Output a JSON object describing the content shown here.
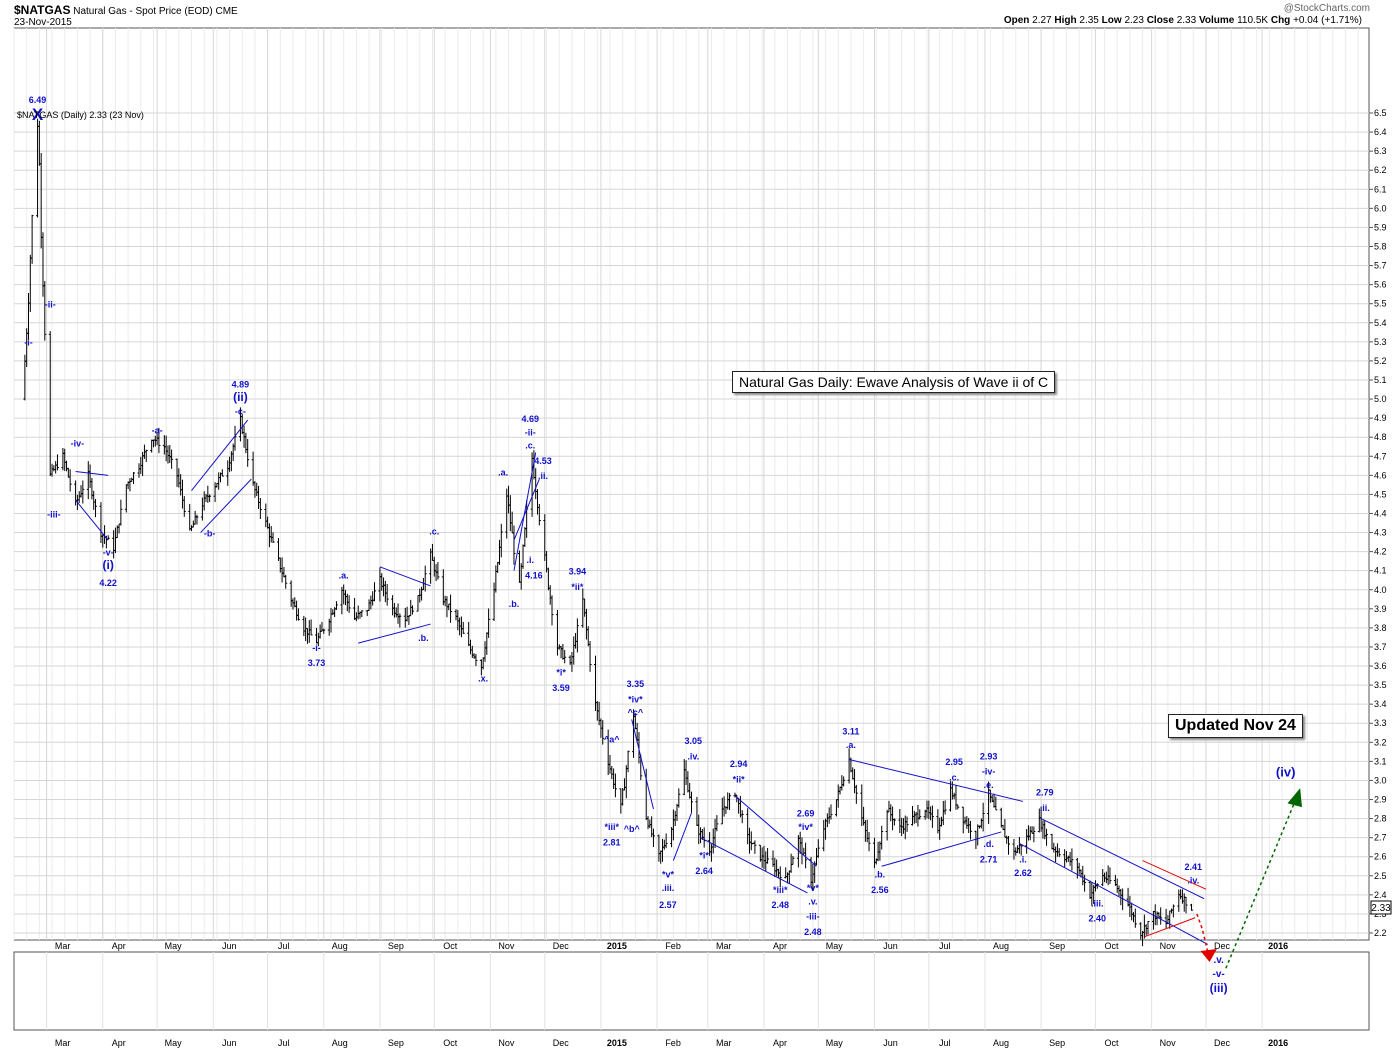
{
  "header": {
    "symbol": "$NATGAS",
    "name": "Natural Gas - Spot Price (EOD)",
    "exchange": "CME",
    "date": "23-Nov-2015",
    "watermark": "@StockCharts.com",
    "legend": "$NATGAS (Daily) 2.33 (23 Nov)",
    "ohlc": [
      {
        "label": "Open",
        "value": "2.27"
      },
      {
        "label": "High",
        "value": "2.35"
      },
      {
        "label": "Low",
        "value": "2.23"
      },
      {
        "label": "Close",
        "value": "2.33"
      },
      {
        "label": "Volume",
        "value": "110.5K"
      },
      {
        "label": "Chg",
        "value": "+0.04 (+1.71%)"
      }
    ]
  },
  "boxes": {
    "title": "Natural Gas Daily: Ewave Analysis of Wave ii of C",
    "updated": "Updated Nov 24"
  },
  "colors": {
    "wave": "#1010cc",
    "bars": "#000000",
    "red": "#e00000",
    "green": "#006600",
    "grid": "#d6d6d6"
  },
  "chart_data": {
    "type": "bar",
    "style": "ohlc",
    "ylim": [
      2.1,
      6.6
    ],
    "yticks": [
      2.2,
      2.3,
      2.4,
      2.5,
      2.6,
      2.7,
      2.8,
      2.9,
      3.0,
      3.1,
      3.2,
      3.3,
      3.4,
      3.5,
      3.6,
      3.7,
      3.8,
      3.9,
      4.0,
      4.1,
      4.2,
      4.3,
      4.4,
      4.5,
      4.6,
      4.7,
      4.8,
      4.9,
      5.0,
      5.1,
      5.2,
      5.3,
      5.4,
      5.5,
      5.6,
      5.7,
      5.8,
      5.9,
      6.0,
      6.1,
      6.2,
      6.3,
      6.4,
      6.5
    ],
    "last_price": "2.33",
    "x_tick_labels": [
      "Mar",
      "Apr",
      "May",
      "Jun",
      "Jul",
      "Aug",
      "Sep",
      "Oct",
      "Nov",
      "Dec",
      "2015",
      "Feb",
      "Mar",
      "Apr",
      "May",
      "Jun",
      "Jul",
      "Aug",
      "Sep",
      "Oct",
      "Nov",
      "Dec",
      "2016"
    ],
    "series": [
      {
        "points": [
          [
            "2014-02-17",
            5.2
          ],
          [
            "2014-02-24",
            6.49
          ],
          [
            "2014-03-03",
            4.6
          ],
          [
            "2014-03-10",
            4.7
          ],
          [
            "2014-03-17",
            4.45
          ],
          [
            "2014-03-24",
            4.6
          ],
          [
            "2014-03-31",
            4.3
          ],
          [
            "2014-04-07",
            4.22
          ],
          [
            "2014-04-14",
            4.55
          ],
          [
            "2014-04-21",
            4.65
          ],
          [
            "2014-04-28",
            4.8
          ],
          [
            "2014-05-05",
            4.75
          ],
          [
            "2014-05-12",
            4.6
          ],
          [
            "2014-05-19",
            4.3
          ],
          [
            "2014-05-26",
            4.45
          ],
          [
            "2014-06-02",
            4.55
          ],
          [
            "2014-06-09",
            4.65
          ],
          [
            "2014-06-16",
            4.89
          ],
          [
            "2014-06-23",
            4.55
          ],
          [
            "2014-06-30",
            4.35
          ],
          [
            "2014-07-07",
            4.15
          ],
          [
            "2014-07-14",
            3.95
          ],
          [
            "2014-07-21",
            3.8
          ],
          [
            "2014-07-28",
            3.73
          ],
          [
            "2014-08-04",
            3.85
          ],
          [
            "2014-08-11",
            4.0
          ],
          [
            "2014-08-18",
            3.85
          ],
          [
            "2014-08-25",
            3.9
          ],
          [
            "2014-09-01",
            4.05
          ],
          [
            "2014-09-08",
            3.9
          ],
          [
            "2014-09-15",
            3.85
          ],
          [
            "2014-09-22",
            3.95
          ],
          [
            "2014-09-29",
            4.18
          ],
          [
            "2014-10-06",
            3.95
          ],
          [
            "2014-10-13",
            3.85
          ],
          [
            "2014-10-20",
            3.7
          ],
          [
            "2014-10-27",
            3.6
          ],
          [
            "2014-11-03",
            4.0
          ],
          [
            "2014-11-10",
            4.5
          ],
          [
            "2014-11-17",
            4.0
          ],
          [
            "2014-11-24",
            4.69
          ],
          [
            "2014-12-01",
            4.16
          ],
          [
            "2014-12-08",
            3.7
          ],
          [
            "2014-12-15",
            3.6
          ],
          [
            "2014-12-22",
            3.94
          ],
          [
            "2014-12-29",
            3.4
          ],
          [
            "2015-01-05",
            3.1
          ],
          [
            "2015-01-12",
            2.85
          ],
          [
            "2015-01-19",
            3.35
          ],
          [
            "2015-01-26",
            2.81
          ],
          [
            "2015-02-02",
            2.6
          ],
          [
            "2015-02-09",
            2.75
          ],
          [
            "2015-02-16",
            3.05
          ],
          [
            "2015-02-23",
            2.75
          ],
          [
            "2015-03-02",
            2.64
          ],
          [
            "2015-03-09",
            2.85
          ],
          [
            "2015-03-16",
            2.94
          ],
          [
            "2015-03-23",
            2.7
          ],
          [
            "2015-03-30",
            2.6
          ],
          [
            "2015-04-06",
            2.55
          ],
          [
            "2015-04-13",
            2.48
          ],
          [
            "2015-04-20",
            2.69
          ],
          [
            "2015-04-27",
            2.48
          ],
          [
            "2015-05-04",
            2.75
          ],
          [
            "2015-05-11",
            2.9
          ],
          [
            "2015-05-18",
            3.11
          ],
          [
            "2015-05-25",
            2.8
          ],
          [
            "2015-06-01",
            2.56
          ],
          [
            "2015-06-08",
            2.85
          ],
          [
            "2015-06-15",
            2.75
          ],
          [
            "2015-06-22",
            2.8
          ],
          [
            "2015-06-29",
            2.85
          ],
          [
            "2015-07-06",
            2.75
          ],
          [
            "2015-07-13",
            2.95
          ],
          [
            "2015-07-20",
            2.8
          ],
          [
            "2015-07-27",
            2.71
          ],
          [
            "2015-08-03",
            2.93
          ],
          [
            "2015-08-10",
            2.75
          ],
          [
            "2015-08-17",
            2.62
          ],
          [
            "2015-08-24",
            2.7
          ],
          [
            "2015-08-31",
            2.79
          ],
          [
            "2015-09-07",
            2.65
          ],
          [
            "2015-09-14",
            2.6
          ],
          [
            "2015-09-21",
            2.55
          ],
          [
            "2015-09-28",
            2.4
          ],
          [
            "2015-10-05",
            2.5
          ],
          [
            "2015-10-12",
            2.45
          ],
          [
            "2015-10-19",
            2.35
          ],
          [
            "2015-10-26",
            2.2
          ],
          [
            "2015-11-02",
            2.3
          ],
          [
            "2015-11-09",
            2.25
          ],
          [
            "2015-11-16",
            2.41
          ],
          [
            "2015-11-23",
            2.33
          ]
        ]
      }
    ],
    "annotations": [
      {
        "text": "6.49",
        "date": "2014-02-24",
        "price": 6.49,
        "dy": -12
      },
      {
        "text": "X",
        "date": "2014-02-24",
        "price": 6.49,
        "dy": 5,
        "size": 17
      },
      {
        "text": "-i-",
        "date": "2014-02-19",
        "price": 5.28
      },
      {
        "text": "-ii-",
        "date": "2014-03-03",
        "price": 5.48
      },
      {
        "text": "-iii-",
        "date": "2014-03-05",
        "price": 4.38
      },
      {
        "text": "-iv-",
        "date": "2014-03-18",
        "price": 4.75
      },
      {
        "text": "-v-",
        "date": "2014-04-04",
        "price": 4.18
      },
      {
        "text": "(i)",
        "date": "2014-04-04",
        "price": 4.11,
        "size": 12
      },
      {
        "text": "4.22",
        "date": "2014-04-04",
        "price": 4.02
      },
      {
        "text": "-a-",
        "date": "2014-05-01",
        "price": 4.82
      },
      {
        "text": "-b-",
        "date": "2014-05-30",
        "price": 4.28
      },
      {
        "text": "4.89",
        "date": "2014-06-16",
        "price": 5.06
      },
      {
        "text": "(ii)",
        "date": "2014-06-16",
        "price": 4.99,
        "size": 12
      },
      {
        "text": "-c-",
        "date": "2014-06-16",
        "price": 4.92
      },
      {
        "text": "-i-",
        "date": "2014-07-28",
        "price": 3.68
      },
      {
        "text": "3.73",
        "date": "2014-07-28",
        "price": 3.6
      },
      {
        "text": ".a.",
        "date": "2014-08-12",
        "price": 4.06
      },
      {
        "text": ".b.",
        "date": "2014-09-25",
        "price": 3.73
      },
      {
        "text": ".c.",
        "date": "2014-10-01",
        "price": 4.29
      },
      {
        "text": ".x.",
        "date": "2014-10-28",
        "price": 3.52
      },
      {
        "text": ".a.",
        "date": "2014-11-08",
        "price": 4.6
      },
      {
        "text": ".b.",
        "date": "2014-11-14",
        "price": 3.91
      },
      {
        "text": "4.69",
        "date": "2014-11-23",
        "price": 4.88
      },
      {
        "text": "-ii-",
        "date": "2014-11-23",
        "price": 4.81
      },
      {
        "text": ".c.",
        "date": "2014-11-23",
        "price": 4.74
      },
      {
        "text": "4.53",
        "date": "2014-11-30",
        "price": 4.66
      },
      {
        "text": ".ii.",
        "date": "2014-11-30",
        "price": 4.58
      },
      {
        "text": ".i.",
        "date": "2014-11-23",
        "price": 4.14
      },
      {
        "text": "4.16",
        "date": "2014-11-25",
        "price": 4.06
      },
      {
        "text": "3.94",
        "date": "2014-12-19",
        "price": 4.08
      },
      {
        "text": "*ii*",
        "date": "2014-12-19",
        "price": 4.0
      },
      {
        "text": "*i*",
        "date": "2014-12-10",
        "price": 3.55
      },
      {
        "text": "3.59",
        "date": "2014-12-10",
        "price": 3.47
      },
      {
        "text": "3.35",
        "date": "2015-01-20",
        "price": 3.49
      },
      {
        "text": "*iv*",
        "date": "2015-01-20",
        "price": 3.41
      },
      {
        "text": "^c^",
        "date": "2015-01-20",
        "price": 3.34
      },
      {
        "text": "^a^",
        "date": "2015-01-07",
        "price": 3.2
      },
      {
        "text": "*iii*",
        "date": "2015-01-07",
        "price": 2.74
      },
      {
        "text": "^b^",
        "date": "2015-01-18",
        "price": 2.73
      },
      {
        "text": "2.81",
        "date": "2015-01-07",
        "price": 2.66
      },
      {
        "text": "*v*",
        "date": "2015-02-07",
        "price": 2.49
      },
      {
        "text": ".iii.",
        "date": "2015-02-07",
        "price": 2.42
      },
      {
        "text": "2.57",
        "date": "2015-02-07",
        "price": 2.33
      },
      {
        "text": "3.05",
        "date": "2015-02-21",
        "price": 3.19
      },
      {
        "text": ".iv.",
        "date": "2015-02-21",
        "price": 3.11
      },
      {
        "text": "*i*",
        "date": "2015-02-27",
        "price": 2.59
      },
      {
        "text": "2.64",
        "date": "2015-02-27",
        "price": 2.51
      },
      {
        "text": "2.94",
        "date": "2015-03-18",
        "price": 3.07
      },
      {
        "text": "*ii*",
        "date": "2015-03-18",
        "price": 2.99
      },
      {
        "text": "*iii*",
        "date": "2015-04-10",
        "price": 2.41
      },
      {
        "text": "2.48",
        "date": "2015-04-10",
        "price": 2.33
      },
      {
        "text": "2.69",
        "date": "2015-04-24",
        "price": 2.81
      },
      {
        "text": "*iv*",
        "date": "2015-04-24",
        "price": 2.74
      },
      {
        "text": "*v*",
        "date": "2015-04-28",
        "price": 2.42
      },
      {
        "text": ".v.",
        "date": "2015-04-28",
        "price": 2.35
      },
      {
        "text": "-iii-",
        "date": "2015-04-28",
        "price": 2.27
      },
      {
        "text": "2.48",
        "date": "2015-04-28",
        "price": 2.19
      },
      {
        "text": "3.11",
        "date": "2015-05-19",
        "price": 3.24
      },
      {
        "text": ".a.",
        "date": "2015-05-19",
        "price": 3.17
      },
      {
        "text": ".b.",
        "date": "2015-06-04",
        "price": 2.49
      },
      {
        "text": "2.56",
        "date": "2015-06-04",
        "price": 2.41
      },
      {
        "text": "2.95",
        "date": "2015-07-15",
        "price": 3.08
      },
      {
        "text": ".c.",
        "date": "2015-07-15",
        "price": 3.0
      },
      {
        "text": "2.93",
        "date": "2015-08-03",
        "price": 3.11
      },
      {
        "text": "-iv-",
        "date": "2015-08-03",
        "price": 3.03
      },
      {
        "text": ".e.",
        "date": "2015-08-03",
        "price": 2.96
      },
      {
        "text": ".d.",
        "date": "2015-08-03",
        "price": 2.65
      },
      {
        "text": "2.71",
        "date": "2015-08-03",
        "price": 2.57
      },
      {
        "text": ".i.",
        "date": "2015-08-22",
        "price": 2.57
      },
      {
        "text": "2.62",
        "date": "2015-08-22",
        "price": 2.5
      },
      {
        "text": "2.79",
        "date": "2015-09-03",
        "price": 2.92
      },
      {
        "text": ".ii.",
        "date": "2015-09-03",
        "price": 2.84
      },
      {
        "text": ".iii.",
        "date": "2015-10-02",
        "price": 2.34
      },
      {
        "text": "2.40",
        "date": "2015-10-02",
        "price": 2.26
      },
      {
        "text": "2.41",
        "date": "2015-11-24",
        "price": 2.53
      },
      {
        "text": ".iv.",
        "date": "2015-11-24",
        "price": 2.46
      },
      {
        "text": "(iv)",
        "date": "2016-01-14",
        "price": 3.02,
        "size": 13
      }
    ],
    "below_annotations": [
      {
        "text": ".v.",
        "date": "2015-12-08",
        "dy": 23
      },
      {
        "text": "-v-",
        "date": "2015-12-08",
        "dy": 37
      },
      {
        "text": "(iii)",
        "date": "2015-12-08",
        "dy": 52,
        "size": 12
      }
    ]
  }
}
